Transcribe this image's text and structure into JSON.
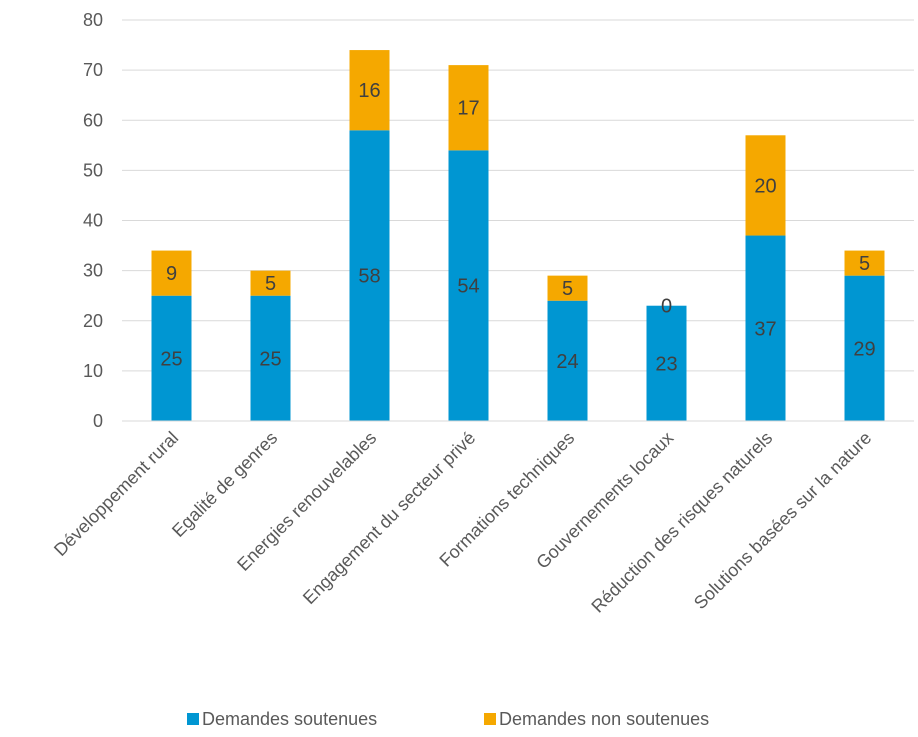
{
  "chart_data": {
    "type": "bar",
    "stacked": true,
    "categories": [
      "Développement rural",
      "Egalité de genres",
      "Energies renouvelables",
      "Engagement du secteur privé",
      "Formations techniques",
      "Gouvernements locaux",
      "Réduction des risques naturels",
      "Solutions basées sur la nature"
    ],
    "series": [
      {
        "name": "Demandes soutenues",
        "color": "#0096D2",
        "values": [
          25,
          25,
          58,
          54,
          24,
          23,
          37,
          29
        ]
      },
      {
        "name": "Demandes non soutenues",
        "color": "#F5A800",
        "values": [
          9,
          5,
          16,
          17,
          5,
          0,
          20,
          5
        ]
      }
    ],
    "ylim": [
      0,
      80
    ],
    "yticks": [
      "0",
      "10",
      "20",
      "30",
      "40",
      "50",
      "60",
      "70",
      "80"
    ],
    "grid": true,
    "legend_position": "bottom",
    "title": "",
    "xlabel": "",
    "ylabel": ""
  }
}
